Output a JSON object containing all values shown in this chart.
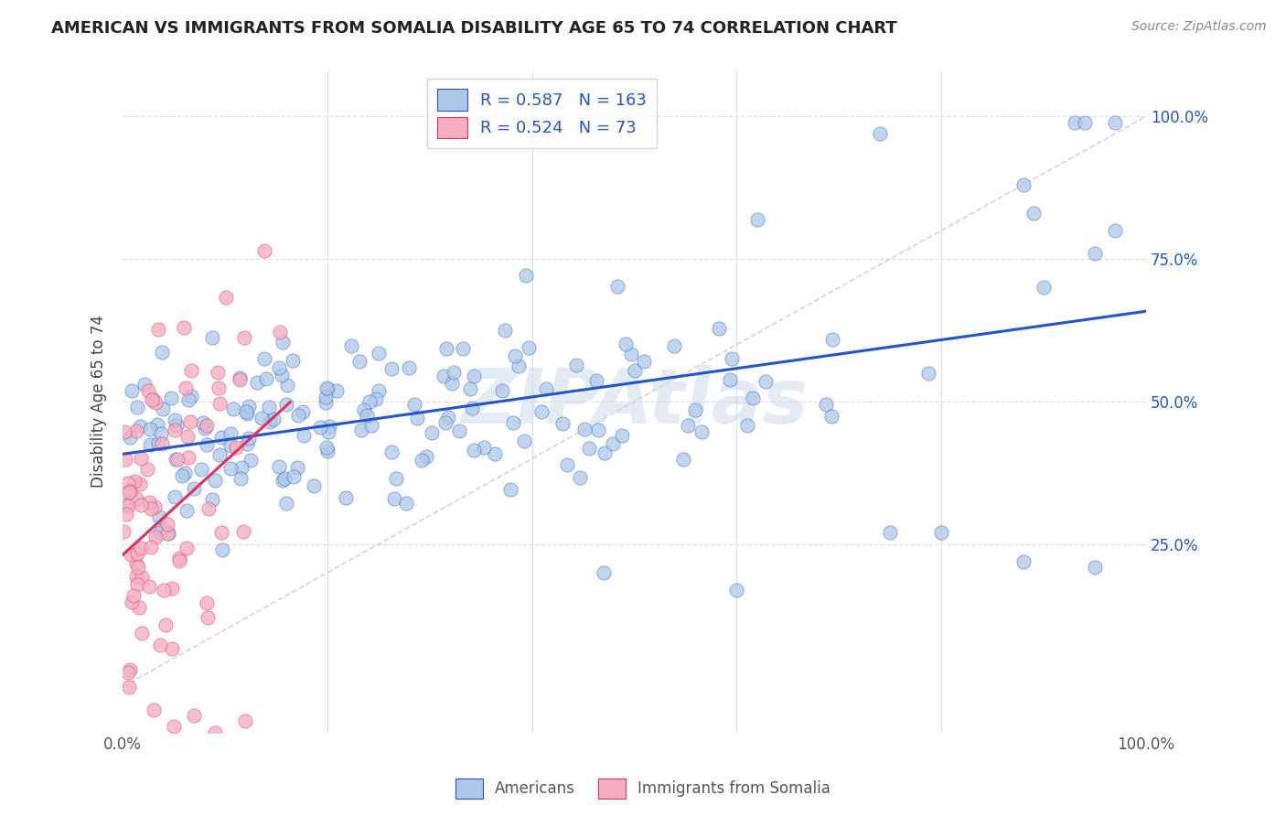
{
  "title": "AMERICAN VS IMMIGRANTS FROM SOMALIA DISABILITY AGE 65 TO 74 CORRELATION CHART",
  "source": "Source: ZipAtlas.com",
  "ylabel": "Disability Age 65 to 74",
  "watermark": "ZIPAtlas",
  "blue_R": 0.587,
  "blue_N": 163,
  "pink_R": 0.524,
  "pink_N": 73,
  "blue_color": "#adc8e8",
  "pink_color": "#f5afc0",
  "blue_line_color": "#2255cc",
  "pink_line_color": "#e03060",
  "diagonal_color": "#cccccc",
  "background_color": "#ffffff",
  "grid_color": "#e0e0e0",
  "xlim": [
    0,
    1
  ],
  "ylim": [
    -0.08,
    1.08
  ],
  "ytick_positions": [
    0.25,
    0.5,
    0.75,
    1.0
  ],
  "ytick_labels": [
    "25.0%",
    "50.0%",
    "75.0%",
    "100.0%"
  ],
  "xtick_labels": [
    "0.0%",
    "",
    "",
    "",
    "",
    "100.0%"
  ],
  "legend_color": "#2255cc",
  "title_color": "#222222",
  "source_color": "#888888",
  "tick_color": "#2255cc"
}
